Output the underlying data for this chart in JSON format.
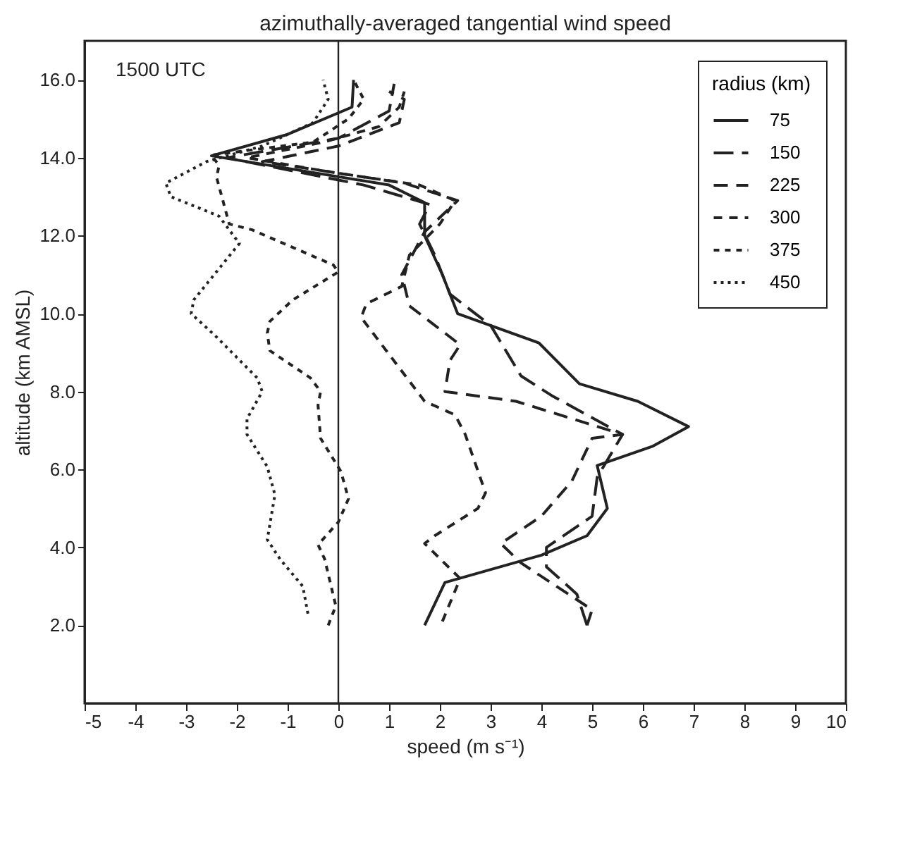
{
  "chart_data": {
    "type": "line",
    "title": "azimuthally-averaged tangential wind speed",
    "xlabel": "speed (m s⁻¹)",
    "ylabel": "altitude (km AMSL)",
    "legend_title": "radius (km)",
    "legend": "top right",
    "annotations": [
      "1500 UTC"
    ],
    "xlim": [
      -5,
      10
    ],
    "xticks": [
      -5,
      -4,
      -3,
      -2,
      -1,
      0,
      1,
      2,
      3,
      4,
      5,
      6,
      7,
      8,
      9,
      10
    ],
    "ylim": [
      0,
      17
    ],
    "yticks": [
      {
        "value": 2,
        "label": "2.0"
      },
      {
        "value": 4,
        "label": "4.0"
      },
      {
        "value": 6,
        "label": "6.0"
      },
      {
        "value": 8,
        "label": "8.0"
      },
      {
        "value": 10,
        "label": "10.0"
      },
      {
        "value": 12,
        "label": "12.0"
      },
      {
        "value": 14,
        "label": "14.0"
      },
      {
        "value": 16,
        "label": "16.0"
      }
    ],
    "ref_lines": [
      {
        "axis": "x",
        "value": 0,
        "color": "#222222"
      }
    ],
    "series": [
      {
        "name": "75",
        "color": "#222222",
        "line_style": "solid",
        "x": [
          1.7,
          2.1,
          4.0,
          4.9,
          5.3,
          5.1,
          6.2,
          6.9,
          5.9,
          4.75,
          3.95,
          2.35,
          2.05,
          1.7,
          1.7,
          1.0,
          -2.5,
          -1.0,
          0.27,
          0.3
        ],
        "values": [
          2.0,
          3.1,
          3.8,
          4.3,
          5.0,
          6.1,
          6.6,
          7.1,
          7.75,
          8.2,
          9.25,
          10.0,
          11.0,
          12.0,
          12.85,
          13.3,
          14.05,
          14.6,
          15.3,
          16.0
        ]
      },
      {
        "name": "150",
        "color": "#222222",
        "line_style": "dashed",
        "x": [
          4.9,
          4.7,
          4.1,
          4.1,
          5.0,
          5.1,
          5.6,
          4.2,
          3.6,
          3.0,
          2.2,
          1.9,
          1.6,
          1.8,
          0.5,
          -2.2,
          0.0,
          1.0,
          1.1
        ],
        "values": [
          2.0,
          2.8,
          3.5,
          4.0,
          4.8,
          5.8,
          6.9,
          7.9,
          8.4,
          9.7,
          10.5,
          11.5,
          12.3,
          12.8,
          13.3,
          14.0,
          14.5,
          15.2,
          15.9
        ]
      },
      {
        "name": "225",
        "color": "#222222",
        "line_style": "dashed",
        "x": [
          4.9,
          5.0,
          4.3,
          3.6,
          3.2,
          4.0,
          4.6,
          5.0,
          5.6,
          3.5,
          2.1,
          2.2,
          2.4,
          1.4,
          1.25,
          1.7,
          2.35,
          1.3,
          -1.5,
          0.0,
          1.2,
          1.3,
          1.0
        ],
        "values": [
          2.0,
          2.4,
          3.0,
          3.6,
          4.1,
          4.8,
          5.7,
          6.8,
          6.9,
          7.75,
          8.0,
          8.8,
          9.2,
          10.2,
          11.0,
          12.1,
          12.9,
          13.35,
          13.9,
          14.3,
          14.9,
          15.5,
          15.7
        ]
      },
      {
        "name": "300",
        "color": "#222222",
        "line_style": "dashed",
        "x": [
          2.05,
          2.4,
          1.7,
          1.9,
          2.75,
          2.9,
          2.5,
          2.3,
          1.7,
          0.45,
          0.55,
          1.25,
          1.4,
          2.0,
          2.3,
          1.6,
          0.0,
          -1.8,
          -0.3,
          0.8,
          1.2,
          1.3
        ],
        "values": [
          2.1,
          3.2,
          4.1,
          4.3,
          5.0,
          5.4,
          6.9,
          7.4,
          7.75,
          9.9,
          10.25,
          10.7,
          11.5,
          12.3,
          12.9,
          13.3,
          13.6,
          14.0,
          14.4,
          14.8,
          15.3,
          15.7
        ]
      },
      {
        "name": "375",
        "color": "#222222",
        "line_style": "dashed",
        "x": [
          -0.2,
          -0.05,
          -0.27,
          -0.4,
          0.0,
          0.2,
          0.05,
          -0.35,
          -0.4,
          -0.35,
          -0.55,
          -1.35,
          -1.4,
          -1.35,
          -0.9,
          0.0,
          -0.1,
          -1.7,
          -2.15,
          -2.4,
          -2.35,
          -2.5,
          -0.5,
          0.2,
          0.5,
          0.3
        ],
        "values": [
          2.0,
          2.5,
          3.7,
          4.07,
          4.65,
          5.25,
          5.95,
          6.8,
          7.65,
          8.0,
          8.35,
          9.05,
          9.5,
          9.8,
          10.35,
          11.07,
          11.25,
          12.15,
          12.3,
          13.5,
          13.8,
          14.07,
          14.4,
          15.0,
          15.5,
          16.0
        ]
      },
      {
        "name": "450",
        "color": "#222222",
        "line_style": "dotted",
        "x": [
          -0.6,
          -0.7,
          -1.15,
          -1.4,
          -1.25,
          -1.4,
          -1.8,
          -1.8,
          -1.5,
          -1.6,
          -2.4,
          -2.9,
          -2.85,
          -1.95,
          -2.35,
          -3.3,
          -3.4,
          -2.6,
          -1.5,
          -0.5,
          -0.2,
          -0.3
        ],
        "values": [
          2.3,
          3.0,
          3.7,
          4.2,
          5.35,
          6.07,
          6.9,
          7.3,
          8.0,
          8.35,
          9.4,
          10.0,
          10.35,
          11.8,
          12.5,
          13.0,
          13.35,
          13.9,
          14.3,
          14.9,
          15.5,
          16.0
        ]
      }
    ]
  }
}
